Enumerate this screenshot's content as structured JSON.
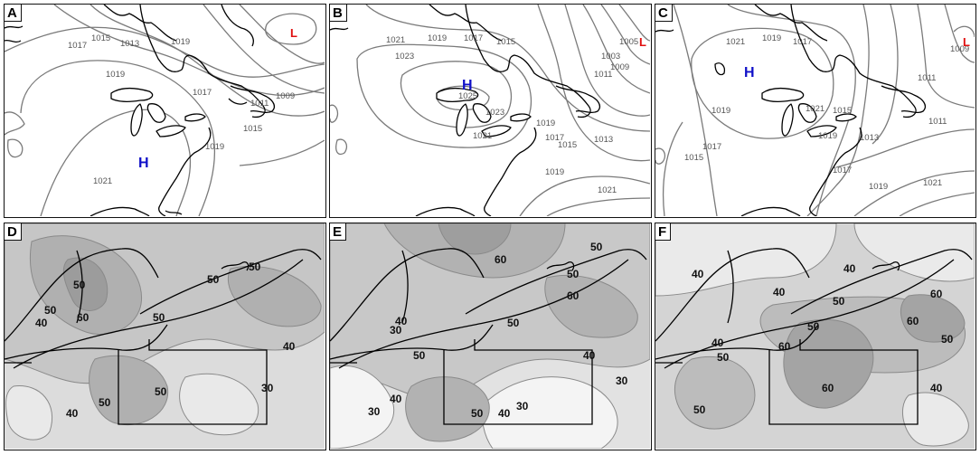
{
  "colors": {
    "high": "#1010c8",
    "low": "#e01010",
    "isobar": "#7a7a7a",
    "outline": "#000000"
  },
  "panels": [
    {
      "label": "A",
      "type": "sea-level-pressure",
      "isobars": [
        "1017",
        "1015",
        "1013",
        "1019",
        "1017",
        "1011",
        "1009",
        "1015",
        "1019",
        "1021",
        "1019"
      ],
      "highs": [
        "H"
      ],
      "lows": [
        "L"
      ]
    },
    {
      "label": "B",
      "type": "sea-level-pressure",
      "isobars": [
        "1021",
        "1019",
        "1017",
        "1015",
        "1005",
        "1003",
        "1023",
        "1011",
        "1009",
        "1025",
        "1023",
        "1019",
        "1017",
        "1021",
        "1015",
        "1013",
        "1019",
        "1021"
      ],
      "highs": [
        "H"
      ],
      "lows": [
        "L"
      ]
    },
    {
      "label": "C",
      "type": "sea-level-pressure",
      "isobars": [
        "1021",
        "1019",
        "1017",
        "1011",
        "1009",
        "1021",
        "1019",
        "1015",
        "1013",
        "1011",
        "1019",
        "1017",
        "1015",
        "1017",
        "1019",
        "1021"
      ],
      "highs": [
        "H"
      ],
      "lows": [
        "L"
      ]
    },
    {
      "label": "D",
      "type": "contour-field",
      "contours": [
        "50",
        "50",
        "50",
        "50",
        "60",
        "40",
        "50",
        "40",
        "50",
        "30",
        "50",
        "40"
      ]
    },
    {
      "label": "E",
      "type": "contour-field",
      "contours": [
        "50",
        "60",
        "50",
        "60",
        "40",
        "30",
        "50",
        "50",
        "40",
        "30",
        "50",
        "40",
        "30",
        "40",
        "30"
      ]
    },
    {
      "label": "F",
      "type": "contour-field",
      "contours": [
        "40",
        "40",
        "40",
        "50",
        "60",
        "40",
        "60",
        "50",
        "60",
        "50",
        "60",
        "50",
        "50",
        "40"
      ]
    }
  ]
}
